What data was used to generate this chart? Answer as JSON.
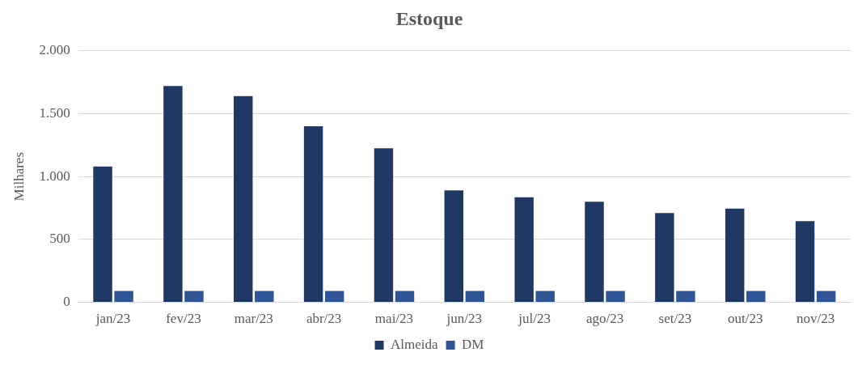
{
  "chart_data": {
    "type": "bar",
    "title": "Estoque",
    "ylabel": "Milhares",
    "categories": [
      "jan/23",
      "fev/23",
      "mar/23",
      "abr/23",
      "mai/23",
      "jun/23",
      "jul/23",
      "ago/23",
      "set/23",
      "out/23",
      "nov/23"
    ],
    "series": [
      {
        "name": "Almeida",
        "color": "#1f3864",
        "values": [
          1080,
          1720,
          1640,
          1400,
          1225,
          890,
          835,
          800,
          710,
          745,
          645
        ]
      },
      {
        "name": "DM",
        "color": "#2f5597",
        "values": [
          90,
          90,
          90,
          90,
          90,
          90,
          90,
          90,
          90,
          90,
          90
        ]
      }
    ],
    "ylim": [
      0,
      2000
    ],
    "yticks": [
      {
        "value": 0,
        "label": "0"
      },
      {
        "value": 500,
        "label": "500"
      },
      {
        "value": 1000,
        "label": "1.000"
      },
      {
        "value": 1500,
        "label": "1.500"
      },
      {
        "value": 2000,
        "label": "2.000"
      }
    ],
    "grid": "y",
    "legend": "bottom"
  }
}
